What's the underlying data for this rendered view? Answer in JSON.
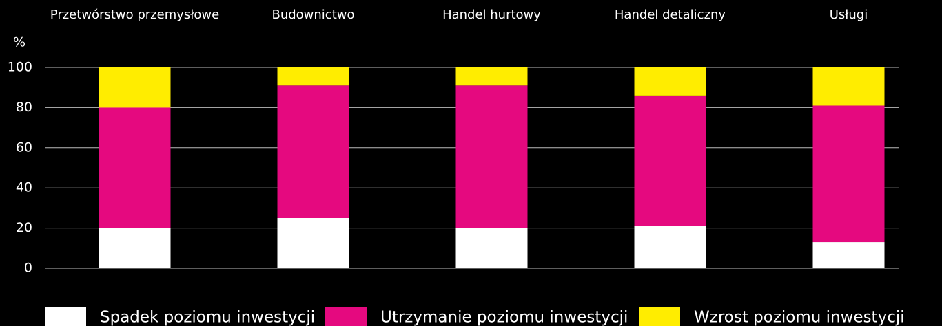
{
  "chart_data": {
    "type": "stacked_bar",
    "y_axis_label": "%",
    "categories": [
      "Przetwórstwo przemysłowe",
      "Budownictwo",
      "Handel hurtowy",
      "Handel detaliczny",
      "Usługi"
    ],
    "series": [
      {
        "name": "Spadek poziomu inwestycji",
        "color": "#ffffff",
        "values": [
          20,
          25,
          20,
          21,
          13
        ]
      },
      {
        "name": "Utrzymanie poziomu inwestycji",
        "color": "#e5097f",
        "values": [
          60,
          66,
          71,
          65,
          68
        ]
      },
      {
        "name": "Wzrost poziomu inwestycji",
        "color": "#ffed00",
        "values": [
          20,
          9,
          9,
          14,
          19
        ]
      }
    ],
    "ylim": [
      0,
      100
    ],
    "yticks": [
      0,
      20,
      40,
      60,
      80,
      100
    ],
    "grid": true,
    "legend": "bottom"
  }
}
